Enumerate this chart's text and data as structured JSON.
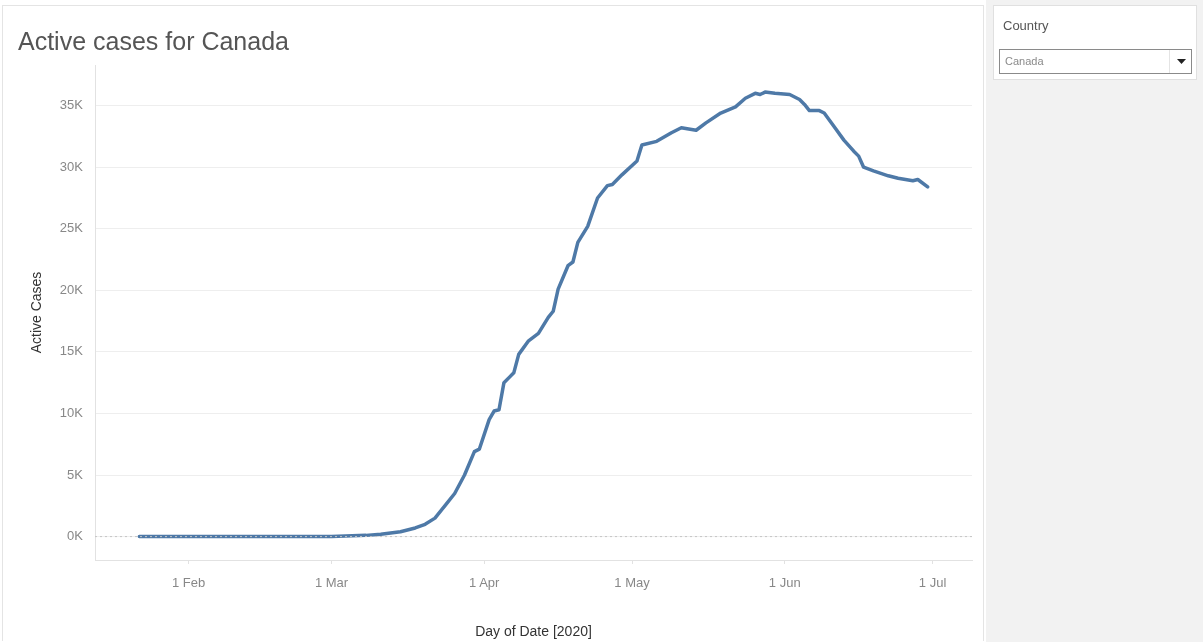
{
  "chart_data": {
    "type": "line",
    "title": "Active cases for Canada",
    "xlabel": "Day of Date [2020]",
    "ylabel": "Active Cases",
    "x": [
      "2020-01-22",
      "2020-02-01",
      "2020-02-15",
      "2020-03-01",
      "2020-03-08",
      "2020-03-11",
      "2020-03-13",
      "2020-03-15",
      "2020-03-17",
      "2020-03-18",
      "2020-03-20",
      "2020-03-22",
      "2020-03-24",
      "2020-03-26",
      "2020-03-28",
      "2020-03-30",
      "2020-03-31",
      "2020-04-02",
      "2020-04-03",
      "2020-04-04",
      "2020-04-05",
      "2020-04-07",
      "2020-04-08",
      "2020-04-10",
      "2020-04-12",
      "2020-04-14",
      "2020-04-15",
      "2020-04-16",
      "2020-04-18",
      "2020-04-19",
      "2020-04-20",
      "2020-04-22",
      "2020-04-24",
      "2020-04-26",
      "2020-04-27",
      "2020-04-29",
      "2020-05-02",
      "2020-05-03",
      "2020-05-06",
      "2020-05-09",
      "2020-05-11",
      "2020-05-14",
      "2020-05-16",
      "2020-05-19",
      "2020-05-22",
      "2020-05-24",
      "2020-05-26",
      "2020-05-27",
      "2020-05-28",
      "2020-05-30",
      "2020-06-02",
      "2020-06-04",
      "2020-06-05",
      "2020-06-06",
      "2020-06-08",
      "2020-06-09",
      "2020-06-11",
      "2020-06-13",
      "2020-06-15",
      "2020-06-16",
      "2020-06-17",
      "2020-06-19",
      "2020-06-22",
      "2020-06-24",
      "2020-06-27",
      "2020-06-28",
      "2020-06-30"
    ],
    "values": [
      0,
      0,
      0,
      0,
      100,
      200,
      300,
      400,
      600,
      700,
      1000,
      1500,
      2500,
      3500,
      5000,
      6900,
      7100,
      9500,
      10200,
      10300,
      12500,
      13300,
      14800,
      15900,
      16500,
      17800,
      18300,
      20100,
      22000,
      22300,
      23900,
      25200,
      27500,
      28500,
      28600,
      29400,
      30500,
      31800,
      32100,
      32800,
      33200,
      33000,
      33600,
      34400,
      34900,
      35600,
      36000,
      35900,
      36100,
      36000,
      35900,
      35500,
      35100,
      34600,
      34600,
      34400,
      33300,
      32200,
      31300,
      30900,
      30000,
      29700,
      29300,
      29100,
      28900,
      29000,
      28400
    ],
    "color": "#4e79a7",
    "xlim": [
      "2020-01-13",
      "2020-07-09"
    ],
    "ylim": [
      -1900,
      38300
    ],
    "xticks": [
      {
        "value": "2020-02-01",
        "label": "1 Feb"
      },
      {
        "value": "2020-03-01",
        "label": "1 Mar"
      },
      {
        "value": "2020-04-01",
        "label": "1 Apr"
      },
      {
        "value": "2020-05-01",
        "label": "1 May"
      },
      {
        "value": "2020-06-01",
        "label": "1 Jun"
      },
      {
        "value": "2020-07-01",
        "label": "1 Jul"
      }
    ],
    "yticks": [
      {
        "value": 0,
        "label": "0K"
      },
      {
        "value": 5000,
        "label": "5K"
      },
      {
        "value": 10000,
        "label": "10K"
      },
      {
        "value": 15000,
        "label": "15K"
      },
      {
        "value": 20000,
        "label": "20K"
      },
      {
        "value": 25000,
        "label": "25K"
      },
      {
        "value": 30000,
        "label": "30K"
      },
      {
        "value": 35000,
        "label": "35K"
      }
    ],
    "grid": "y",
    "ref_lines": [
      {
        "axis": "y",
        "value": 0,
        "color": "#c4c4c4",
        "line_style": "dotted"
      }
    ],
    "annotations": [
      "Country",
      "Canada"
    ]
  }
}
